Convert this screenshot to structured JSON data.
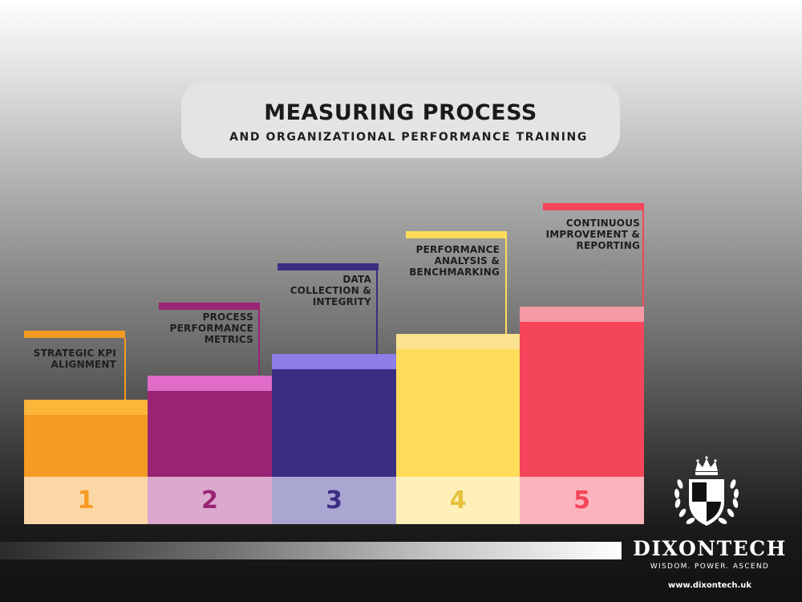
{
  "title": {
    "main": "MEASURING PROCESS",
    "subtitle": "AND ORGANIZATIONAL PERFORMANCE TRAINING"
  },
  "steps": [
    {
      "number": "1",
      "label_lines": [
        "STRATEGIC KPI",
        "ALIGNMENT"
      ],
      "main_color": "#f59b23",
      "band_color": "#fbb63a",
      "tab_color": "#f59b23",
      "cell_color": "#fbd7a6",
      "number_color": "#f59b23"
    },
    {
      "number": "2",
      "label_lines": [
        "PROCESS",
        "PERFORMANCE",
        "METRICS"
      ],
      "main_color": "#9a2474",
      "band_color": "#e06cc8",
      "tab_color": "#9a2474",
      "cell_color": "#dba9ce",
      "number_color": "#9a2474"
    },
    {
      "number": "3",
      "label_lines": [
        "DATA",
        "COLLECTION &",
        "INTEGRITY"
      ],
      "main_color": "#3b2e82",
      "band_color": "#8d7ee8",
      "tab_color": "#3b2e82",
      "cell_color": "#aaa6d2",
      "number_color": "#3b2e82"
    },
    {
      "number": "4",
      "label_lines": [
        "PERFORMANCE",
        "ANALYSIS &",
        "BENCHMARKING"
      ],
      "main_color": "#fedc5a",
      "band_color": "#fbe28f",
      "tab_color": "#fedc5a",
      "cell_color": "#fef0b8",
      "number_color": "#e6c13c"
    },
    {
      "number": "5",
      "label_lines": [
        "CONTINUOUS",
        "IMPROVEMENT &",
        "REPORTING"
      ],
      "main_color": "#f4455a",
      "band_color": "#f59ba6",
      "tab_color": "#f4455a",
      "cell_color": "#fbb4bc",
      "number_color": "#f4455a"
    }
  ],
  "brand": {
    "name": "DIXONTECH",
    "tagline": "WISDOM.  POWER.  ASCEND",
    "url": "www.dixontech.uk"
  }
}
